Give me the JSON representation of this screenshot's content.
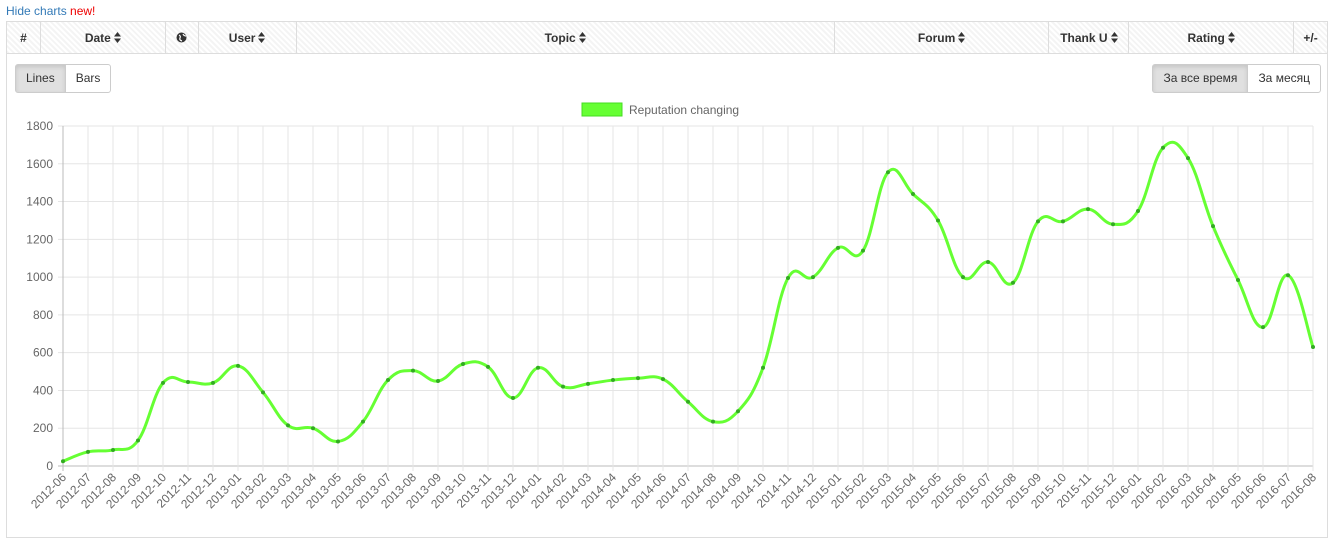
{
  "header": {
    "link": "Hide charts",
    "badge": "new!"
  },
  "table": {
    "columns": [
      "#",
      "Date",
      "User",
      "Topic",
      "Forum",
      "Thank U",
      "Rating",
      "+/-"
    ]
  },
  "buttons": {
    "chart_type": [
      "Lines",
      "Bars"
    ],
    "period": [
      "За все время",
      "За месяц"
    ]
  },
  "chart_data": {
    "type": "line",
    "categories": [
      "2012-06",
      "2012-07",
      "2012-08",
      "2012-09",
      "2012-10",
      "2012-11",
      "2012-12",
      "2013-01",
      "2013-02",
      "2013-03",
      "2013-04",
      "2013-05",
      "2013-06",
      "2013-07",
      "2013-08",
      "2013-09",
      "2013-10",
      "2013-11",
      "2013-12",
      "2014-01",
      "2014-02",
      "2014-03",
      "2014-04",
      "2014-05",
      "2014-06",
      "2014-07",
      "2014-08",
      "2014-09",
      "2014-10",
      "2014-11",
      "2014-12",
      "2015-01",
      "2015-02",
      "2015-03",
      "2015-04",
      "2015-05",
      "2015-06",
      "2015-07",
      "2015-08",
      "2015-09",
      "2015-10",
      "2015-11",
      "2015-12",
      "2016-01",
      "2016-02",
      "2016-03",
      "2016-04",
      "2016-05",
      "2016-06",
      "2016-07",
      "2016-08"
    ],
    "series": [
      {
        "name": "Reputation changing",
        "color": "#66ff33",
        "values": [
          25,
          75,
          85,
          135,
          440,
          445,
          440,
          530,
          390,
          215,
          200,
          130,
          235,
          455,
          505,
          450,
          540,
          525,
          360,
          520,
          420,
          435,
          455,
          465,
          460,
          340,
          235,
          290,
          520,
          995,
          1000,
          1155,
          1140,
          1555,
          1440,
          1300,
          1000,
          1080,
          970,
          1295,
          1295,
          1360,
          1280,
          1350,
          1685,
          1630,
          1270,
          985,
          735,
          1010,
          630
        ]
      }
    ],
    "ylim": [
      0,
      1800
    ],
    "yticks": [
      0,
      200,
      400,
      600,
      800,
      1000,
      1200,
      1400,
      1600,
      1800
    ],
    "grid": true
  }
}
